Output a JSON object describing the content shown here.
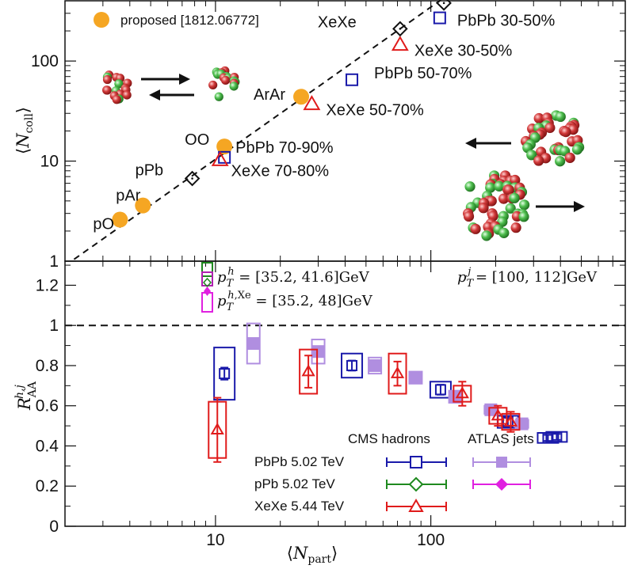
{
  "chart_data": [
    {
      "type": "scatter",
      "title": "",
      "xlabel": "⟨N_part⟩",
      "ylabel": "⟨N_coll⟩",
      "xscale": "log",
      "yscale": "log",
      "ylim": [
        1,
        400
      ],
      "yticks": [
        1,
        10,
        100
      ],
      "ytick_labels": [
        "1",
        "10",
        "100"
      ],
      "legend": "top-left",
      "legend_entry": "proposed [1812.06772]",
      "colors": {
        "proposed": "#f5a623",
        "pbpb": "#1a1aaa",
        "xexe": "#e01b1b",
        "ppb": "#111111"
      },
      "fit_line": [
        [
          2.0,
          0.9
        ],
        [
          110,
          400
        ]
      ],
      "proposed_points": [
        {
          "label": "pO",
          "x": 3.6,
          "y": 2.6
        },
        {
          "label": "pAr",
          "x": 4.6,
          "y": 3.6
        },
        {
          "label": "OO",
          "x": 11,
          "y": 14
        },
        {
          "label": "ArAr",
          "x": 25,
          "y": 44
        }
      ],
      "points": [
        {
          "system": "pPb",
          "label": "pPb",
          "x": 7.8,
          "y": 6.7,
          "marker": "diamond"
        },
        {
          "system": "PbPb",
          "label": "PbPb  70-90%",
          "x": 11,
          "y": 10.9,
          "marker": "square"
        },
        {
          "system": "XeXe",
          "label": "XeXe  70-80%",
          "x": 10.5,
          "y": 10.2,
          "marker": "triangle"
        },
        {
          "system": "XeXe",
          "label": "XeXe  50-70%",
          "x": 28,
          "y": 37,
          "marker": "triangle"
        },
        {
          "system": "PbPb",
          "label": "PbPb  50-70%",
          "x": 43,
          "y": 65,
          "marker": "square"
        },
        {
          "system": "XeXe",
          "label": "XeXe  30-50%",
          "x": 72,
          "y": 145,
          "marker": "triangle"
        },
        {
          "system": "PbPb",
          "label": "PbPb  30-50%",
          "x": 110,
          "y": 270,
          "marker": "square"
        },
        {
          "system": "XeXe",
          "label": "XeXe",
          "x": 72,
          "y": 210,
          "marker": "diamond"
        },
        {
          "system": "PbPb",
          "label": "PbPb",
          "x": 115,
          "y": 380,
          "marker": "diamond"
        }
      ]
    },
    {
      "type": "scatter",
      "title": "",
      "xlabel": "⟨N_part⟩",
      "ylabel": "R_AA^{h,j}",
      "xscale": "log",
      "xlim": [
        2.0,
        800
      ],
      "xticks": [
        10,
        100
      ],
      "xtick_labels": [
        "10",
        "100"
      ],
      "ylim": [
        0,
        1.32
      ],
      "yticks": [
        0,
        0.2,
        0.4,
        0.6,
        0.8,
        1,
        1.2
      ],
      "ytick_labels": [
        "0",
        "0.2",
        "0.4",
        "0.6",
        "0.8",
        "1",
        "1.2"
      ],
      "reference_line": 1,
      "annotations": {
        "pt_hadron": "p_T^h = [35.2, 41.6]GeV",
        "pt_jet": "p_T^j = [100, 112]GeV",
        "pt_hadron_xe": "p_T^{h,Xe} = [35.2, 48]GeV"
      },
      "legend": "bottom-right",
      "legend_headers": [
        "CMS hadrons",
        "ATLAS jets"
      ],
      "legend_entries": [
        "PbPb 5.02 TeV",
        "pPb 5.02 TeV",
        "XeXe 5.44 TeV"
      ],
      "colors": {
        "pbpb": "#1a1aaa",
        "pbpb_jets": "#b08ee0",
        "ppb": "#1f8a1f",
        "ppb_jets": "#e020e0",
        "xexe": "#e01b1b"
      },
      "series": [
        {
          "name": "PbPb 5.02 TeV",
          "kind": "hadron",
          "points": [
            {
              "x": 11,
              "y": 0.76,
              "stat": 0.03,
              "sys": 0.13
            },
            {
              "x": 43,
              "y": 0.8,
              "stat": 0.025,
              "sys": 0.06
            },
            {
              "x": 111,
              "y": 0.68,
              "stat": 0.025,
              "sys": 0.04
            },
            {
              "x": 228,
              "y": 0.52,
              "stat": 0.02,
              "sys": 0.03
            },
            {
              "x": 350,
              "y": 0.44,
              "stat": 0.015,
              "sys": 0.025
            },
            {
              "x": 384,
              "y": 0.445,
              "stat": 0.015,
              "sys": 0.025
            }
          ]
        },
        {
          "name": "PbPb jets",
          "kind": "jet",
          "points": [
            {
              "x": 15,
              "y": 0.91,
              "stat": 0.01,
              "sys": 0.1
            },
            {
              "x": 30,
              "y": 0.87,
              "stat": 0.01,
              "sys": 0.06
            },
            {
              "x": 55,
              "y": 0.8,
              "stat": 0.01,
              "sys": 0.04
            },
            {
              "x": 85,
              "y": 0.74,
              "stat": 0.01,
              "sys": 0.03
            },
            {
              "x": 130,
              "y": 0.645,
              "stat": 0.01,
              "sys": 0.03
            },
            {
              "x": 190,
              "y": 0.58,
              "stat": 0.01,
              "sys": 0.02
            },
            {
              "x": 265,
              "y": 0.51,
              "stat": 0.01,
              "sys": 0.02
            }
          ]
        },
        {
          "name": "XeXe 5.44 TeV",
          "kind": "hadron",
          "points": [
            {
              "x": 10.2,
              "y": 0.48,
              "stat": 0.16,
              "sys": 0.14
            },
            {
              "x": 27,
              "y": 0.77,
              "stat": 0.08,
              "sys": 0.11
            },
            {
              "x": 70,
              "y": 0.76,
              "stat": 0.06,
              "sys": 0.1
            },
            {
              "x": 140,
              "y": 0.66,
              "stat": 0.06,
              "sys": 0.04
            },
            {
              "x": 205,
              "y": 0.55,
              "stat": 0.05,
              "sys": 0.04
            },
            {
              "x": 235,
              "y": 0.52,
              "stat": 0.05,
              "sys": 0.04
            }
          ]
        },
        {
          "name": "pPb 5.02 TeV",
          "kind": "hadron",
          "points": []
        }
      ]
    }
  ]
}
